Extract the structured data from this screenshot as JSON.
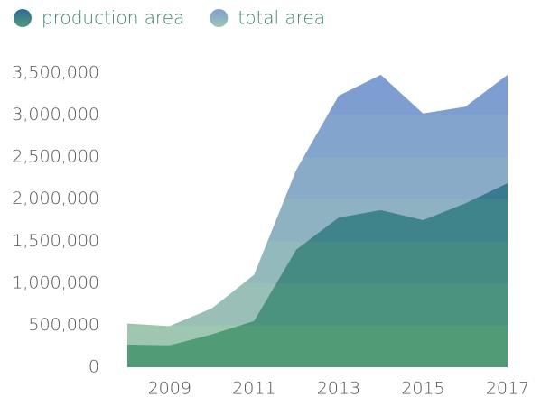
{
  "chart_data": {
    "type": "area",
    "x": [
      2008,
      2009,
      2010,
      2011,
      2012,
      2013,
      2014,
      2015,
      2016,
      2017
    ],
    "series": [
      {
        "name": "production area",
        "colors": [
          "#519b77",
          "#2c6a9e"
        ],
        "values": [
          270000,
          260000,
          390000,
          550000,
          1400000,
          1780000,
          1870000,
          1750000,
          1950000,
          2190000
        ]
      },
      {
        "name": "total area",
        "colors": [
          "#9ec6b1",
          "#7e9ed2"
        ],
        "values": [
          520000,
          490000,
          700000,
          1100000,
          2350000,
          3230000,
          3480000,
          3020000,
          3100000,
          3480000
        ]
      }
    ],
    "xlim": [
      2008,
      2017
    ],
    "xticks": [
      2009,
      2011,
      2013,
      2015,
      2017
    ],
    "ylim": [
      0,
      3500000
    ],
    "yticks": [
      0,
      {
        "value": 500000,
        "label": "500,000"
      },
      {
        "value": 1000000,
        "label": "1,000,000"
      },
      {
        "value": 1500000,
        "label": "1,500,000"
      },
      {
        "value": 2000000,
        "label": "2,000,000"
      },
      {
        "value": 2500000,
        "label": "2,500,000"
      },
      {
        "value": 3000000,
        "label": "3,000,000"
      },
      {
        "value": 3500000,
        "label": "3,500,000"
      }
    ],
    "legend": "top-left"
  }
}
